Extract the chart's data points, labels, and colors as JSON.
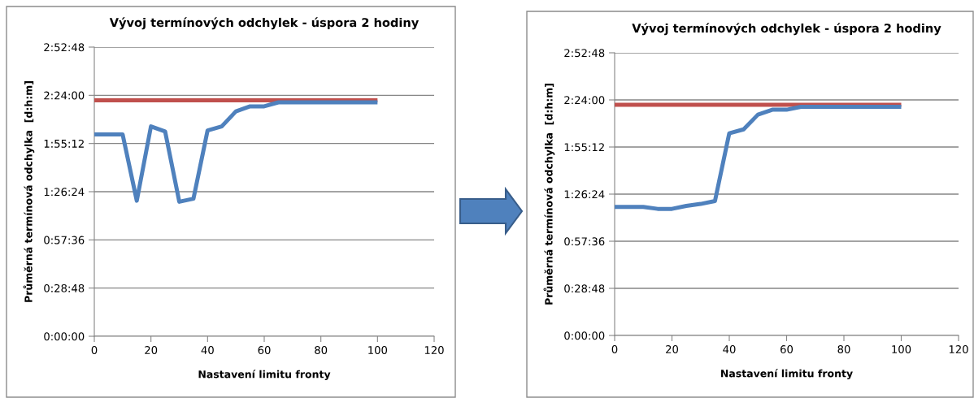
{
  "chart_data": [
    {
      "type": "line",
      "title": "Vývoj termínových odchylek - úspora 2 hodiny",
      "xlabel": "Nastavení limitu fronty",
      "ylabel": "Průměrná termínová odchylka  [d:h:m]",
      "x": [
        0,
        5,
        10,
        15,
        20,
        25,
        30,
        35,
        40,
        45,
        50,
        55,
        60,
        65,
        70,
        75,
        80,
        85,
        90,
        95,
        100
      ],
      "series": [
        {
          "color": "#c0504d",
          "values": [
            2.35,
            2.35,
            2.35,
            2.35,
            2.35,
            2.35,
            2.35,
            2.35,
            2.35,
            2.35,
            2.35,
            2.35,
            2.35,
            2.35,
            2.35,
            2.35,
            2.35,
            2.35,
            2.35,
            2.35,
            2.35
          ]
        },
        {
          "color": "#4f81bd",
          "values": [
            2.01,
            2.01,
            2.01,
            1.35,
            2.09,
            2.04,
            1.34,
            1.37,
            2.05,
            2.09,
            2.24,
            2.29,
            2.29,
            2.33,
            2.33,
            2.33,
            2.33,
            2.33,
            2.33,
            2.33,
            2.33
          ]
        }
      ],
      "xlim": [
        0,
        120
      ],
      "xticks": [
        0,
        20,
        40,
        60,
        80,
        100,
        120
      ],
      "ylim": [
        0,
        2.88
      ],
      "yticks": [
        {
          "value": 0,
          "label": "0:00:00"
        },
        {
          "value": 0.48,
          "label": "0:28:48"
        },
        {
          "value": 0.96,
          "label": "0:57:36"
        },
        {
          "value": 1.44,
          "label": "1:26:24"
        },
        {
          "value": 1.92,
          "label": "1:55:12"
        },
        {
          "value": 2.4,
          "label": "2:24:00"
        },
        {
          "value": 2.88,
          "label": "2:52:48"
        }
      ],
      "grid": "y",
      "marker": "none",
      "line_style": "solid"
    },
    {
      "type": "line",
      "title": "Vývoj termínových odchylek - úspora 2 hodiny",
      "xlabel": "Nastavení limitu fronty",
      "ylabel": "Průměrná termínová odchylka  [d:h:m]",
      "x": [
        0,
        5,
        10,
        15,
        20,
        25,
        30,
        35,
        40,
        45,
        50,
        55,
        60,
        65,
        70,
        75,
        80,
        85,
        90,
        95,
        100
      ],
      "series": [
        {
          "color": "#c0504d",
          "values": [
            2.35,
            2.35,
            2.35,
            2.35,
            2.35,
            2.35,
            2.35,
            2.35,
            2.35,
            2.35,
            2.35,
            2.35,
            2.35,
            2.35,
            2.35,
            2.35,
            2.35,
            2.35,
            2.35,
            2.35,
            2.35
          ]
        },
        {
          "color": "#4f81bd",
          "values": [
            1.31,
            1.31,
            1.31,
            1.29,
            1.29,
            1.32,
            1.34,
            1.37,
            2.06,
            2.1,
            2.25,
            2.3,
            2.3,
            2.33,
            2.33,
            2.33,
            2.33,
            2.33,
            2.33,
            2.33,
            2.33
          ]
        }
      ],
      "xlim": [
        0,
        120
      ],
      "xticks": [
        0,
        20,
        40,
        60,
        80,
        100,
        120
      ],
      "ylim": [
        0,
        2.88
      ],
      "yticks": [
        {
          "value": 0,
          "label": "0:00:00"
        },
        {
          "value": 0.48,
          "label": "0:28:48"
        },
        {
          "value": 0.96,
          "label": "0:57:36"
        },
        {
          "value": 1.44,
          "label": "1:26:24"
        },
        {
          "value": 1.92,
          "label": "1:55:12"
        },
        {
          "value": 2.4,
          "label": "2:24:00"
        },
        {
          "value": 2.88,
          "label": "2:52:48"
        }
      ],
      "grid": "y",
      "marker": "none",
      "line_style": "solid"
    }
  ]
}
